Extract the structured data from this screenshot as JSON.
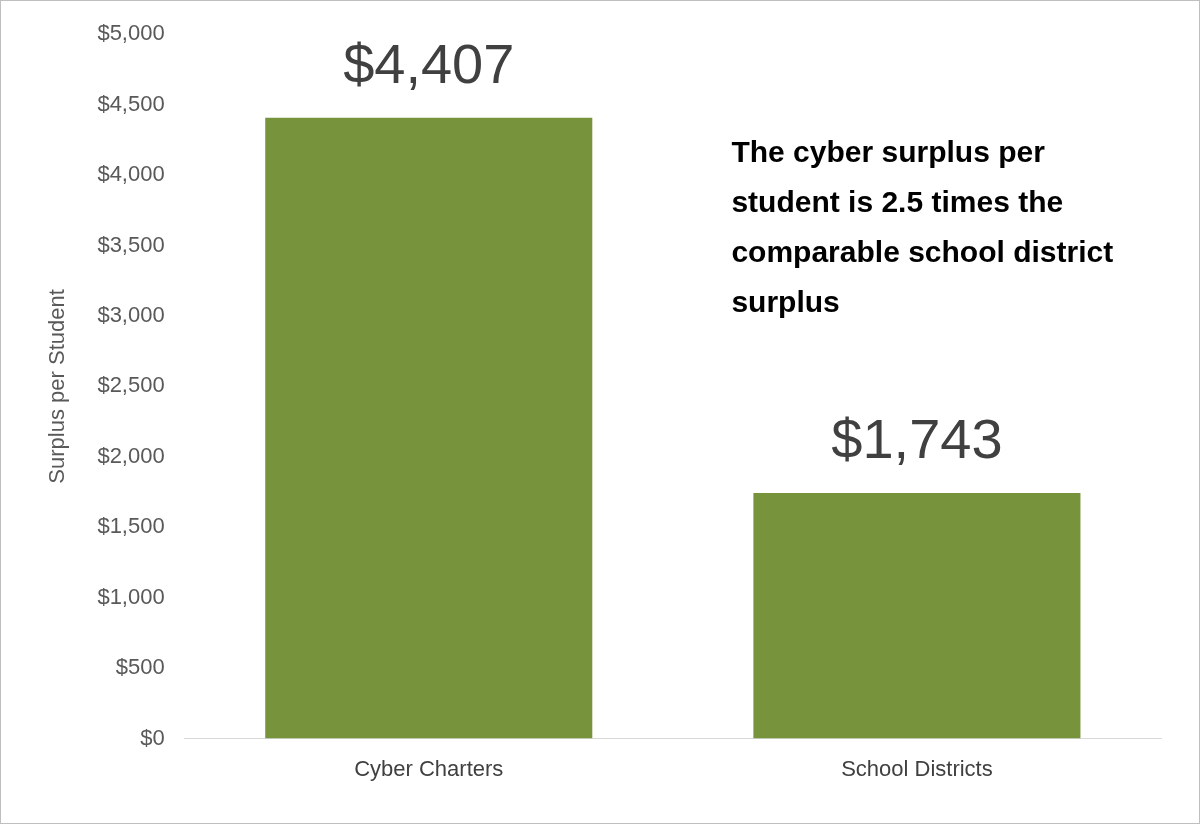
{
  "chart_data": {
    "type": "bar",
    "y_label": "Surplus per Student",
    "annotation": "The cyber surplus per student is 2.5 times the comparable school district surplus",
    "categories": [
      "Cyber Charters",
      "School Districts"
    ],
    "values": [
      4407,
      1743
    ],
    "value_labels": [
      "$4,407",
      "$1,743"
    ],
    "color": "#77933c",
    "ylim": [
      0,
      5000
    ],
    "yticks": [
      {
        "value": 0,
        "label": "$0"
      },
      {
        "value": 500,
        "label": "$500"
      },
      {
        "value": 1000,
        "label": "$1,000"
      },
      {
        "value": 1500,
        "label": "$1,500"
      },
      {
        "value": 2000,
        "label": "$2,000"
      },
      {
        "value": 2500,
        "label": "$2,500"
      },
      {
        "value": 3000,
        "label": "$3,000"
      },
      {
        "value": 3500,
        "label": "$3,500"
      },
      {
        "value": 4000,
        "label": "$4,000"
      },
      {
        "value": 4500,
        "label": "$4,500"
      },
      {
        "value": 5000,
        "label": "$5,000"
      }
    ],
    "grid": false,
    "data_labels": true
  }
}
